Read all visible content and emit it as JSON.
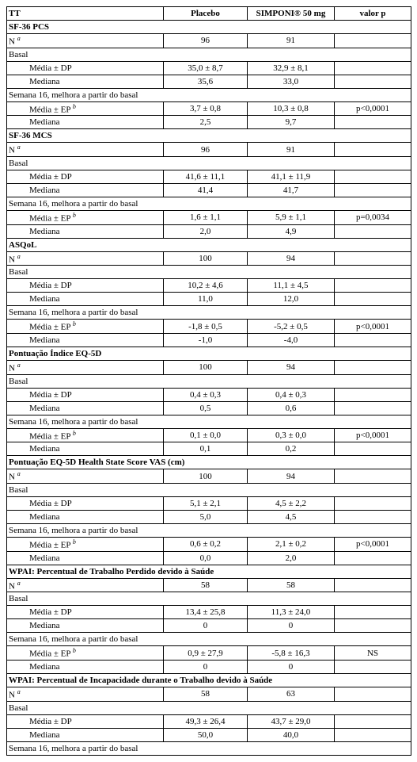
{
  "columns": {
    "tt": "TT",
    "placebo": "Placebo",
    "treatment": "SIMPONI® 50 mg",
    "pvalue": "valor p"
  },
  "labels": {
    "n": "N",
    "n_sup": "a",
    "basal": "Basal",
    "media_dp": "Média ± DP",
    "media_ep": "Média ± EP",
    "ep_sup": "b",
    "mediana": "Mediana",
    "s16": "Semana 16, melhora a partir do basal"
  },
  "sections": [
    {
      "title": "SF-36 PCS",
      "n": {
        "a": "96",
        "b": "91"
      },
      "basal": {
        "media": {
          "a": "35,0 ± 8,7",
          "b": "32,9 ± 8,1"
        },
        "mediana": {
          "a": "35,6",
          "b": "33,0"
        }
      },
      "s16": {
        "media": {
          "a": "3,7 ± 0,8",
          "b": "10,3 ± 0,8"
        },
        "mediana": {
          "a": "2,5",
          "b": "9,7"
        },
        "p": "p<0,0001"
      }
    },
    {
      "title": "SF-36 MCS",
      "n": {
        "a": "96",
        "b": "91"
      },
      "basal": {
        "media": {
          "a": "41,6 ± 11,1",
          "b": "41,1 ± 11,9"
        },
        "mediana": {
          "a": "41,4",
          "b": "41,7"
        }
      },
      "s16": {
        "media": {
          "a": "1,6 ± 1,1",
          "b": "5,9 ± 1,1"
        },
        "mediana": {
          "a": "2,0",
          "b": "4,9"
        },
        "p": "p=0,0034"
      }
    },
    {
      "title": "ASQoL",
      "n": {
        "a": "100",
        "b": "94"
      },
      "basal": {
        "media": {
          "a": "10,2 ± 4,6",
          "b": "11,1 ± 4,5"
        },
        "mediana": {
          "a": "11,0",
          "b": "12,0"
        }
      },
      "s16": {
        "media": {
          "a": "-1,8 ± 0,5",
          "b": "-5,2 ± 0,5"
        },
        "mediana": {
          "a": "-1,0",
          "b": "-4,0"
        },
        "p": "p<0,0001"
      }
    },
    {
      "title": "Pontuação Índice EQ-5D",
      "n": {
        "a": "100",
        "b": "94"
      },
      "basal": {
        "media": {
          "a": "0,4 ± 0,3",
          "b": "0,4 ± 0,3"
        },
        "mediana": {
          "a": "0,5",
          "b": "0,6"
        }
      },
      "s16": {
        "media": {
          "a": "0,1 ± 0,0",
          "b": "0,3 ± 0,0"
        },
        "mediana": {
          "a": "0,1",
          "b": "0,2"
        },
        "p": "p<0,0001"
      }
    },
    {
      "title": "Pontuação EQ-5D Health State Score VAS (cm)",
      "n": {
        "a": "100",
        "b": "94"
      },
      "basal": {
        "media": {
          "a": "5,1 ± 2,1",
          "b": "4,5 ± 2,2"
        },
        "mediana": {
          "a": "5,0",
          "b": "4,5"
        }
      },
      "s16": {
        "media": {
          "a": "0,6 ± 0,2",
          "b": "2,1 ± 0,2"
        },
        "mediana": {
          "a": "0,0",
          "b": "2,0"
        },
        "p": "p<0,0001"
      }
    },
    {
      "title": "WPAI: Percentual de Trabalho Perdido devido à Saúde",
      "n": {
        "a": "58",
        "b": "58"
      },
      "basal": {
        "media": {
          "a": "13,4 ± 25,8",
          "b": "11,3 ± 24,0"
        },
        "mediana": {
          "a": "0",
          "b": "0"
        }
      },
      "s16": {
        "media": {
          "a": "0,9 ± 27,9",
          "b": "-5,8 ± 16,3"
        },
        "mediana": {
          "a": "0",
          "b": "0"
        },
        "p": "NS"
      }
    },
    {
      "title": "WPAI: Percentual de Incapacidade durante o Trabalho devido à Saúde",
      "n": {
        "a": "58",
        "b": "63"
      },
      "basal": {
        "media": {
          "a": "49,3 ± 26,4",
          "b": "43,7 ± 29,0"
        },
        "mediana": {
          "a": "50,0",
          "b": "40,0"
        }
      },
      "s16_open": true
    }
  ]
}
